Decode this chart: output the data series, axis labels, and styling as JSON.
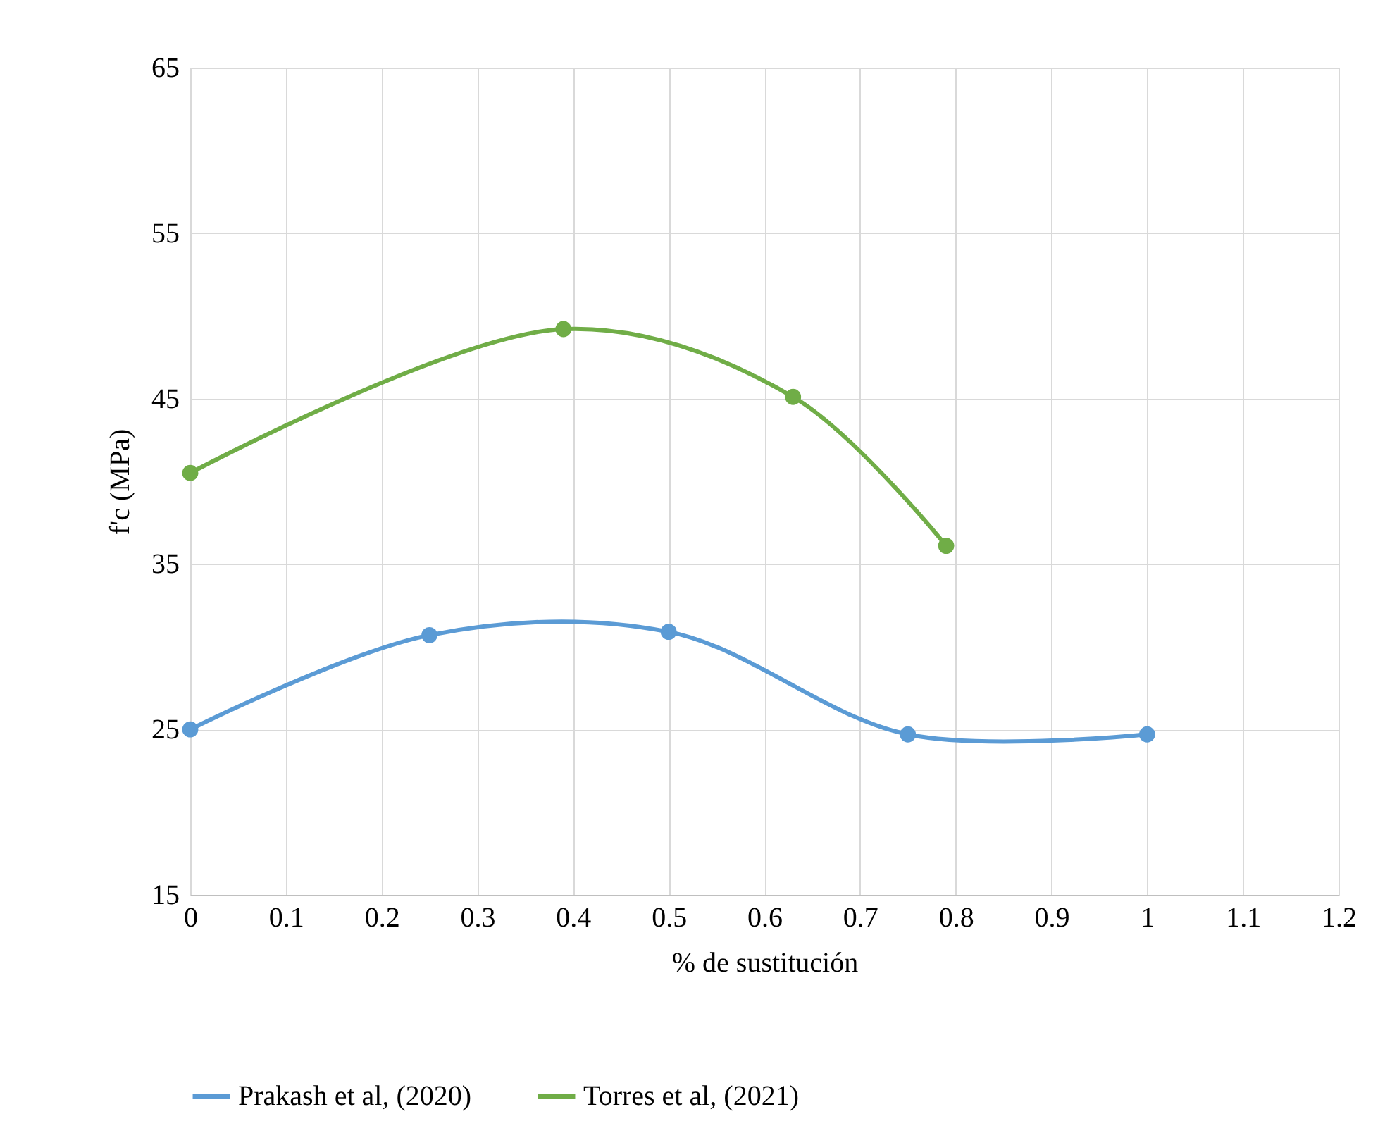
{
  "chart_data": {
    "type": "line",
    "xlabel": "% de sustitución",
    "ylabel": "f'c (MPa)",
    "xlim": [
      0,
      1.2
    ],
    "xticks": [
      0,
      0.1,
      0.2,
      0.3,
      0.4,
      0.5,
      0.6,
      0.7,
      0.8,
      0.9,
      1,
      1.1,
      1.2
    ],
    "ylim": [
      15,
      65
    ],
    "yticks": [
      15,
      25,
      35,
      45,
      55,
      65
    ],
    "grid": true,
    "legend": "bottom",
    "marker": "circle",
    "line_style": "solid",
    "series": [
      {
        "name": "Prakash et al, (2020)",
        "color": "#5b9bd5",
        "x": [
          0,
          0.25,
          0.5,
          0.75,
          1
        ],
        "values": [
          25,
          30.7,
          30.9,
          24.7,
          24.7
        ]
      },
      {
        "name": "Torres et al, (2021)",
        "color": "#70ad47",
        "x": [
          0,
          0.39,
          0.63,
          0.79
        ],
        "values": [
          40.5,
          49.2,
          45.1,
          36.1
        ]
      }
    ]
  }
}
